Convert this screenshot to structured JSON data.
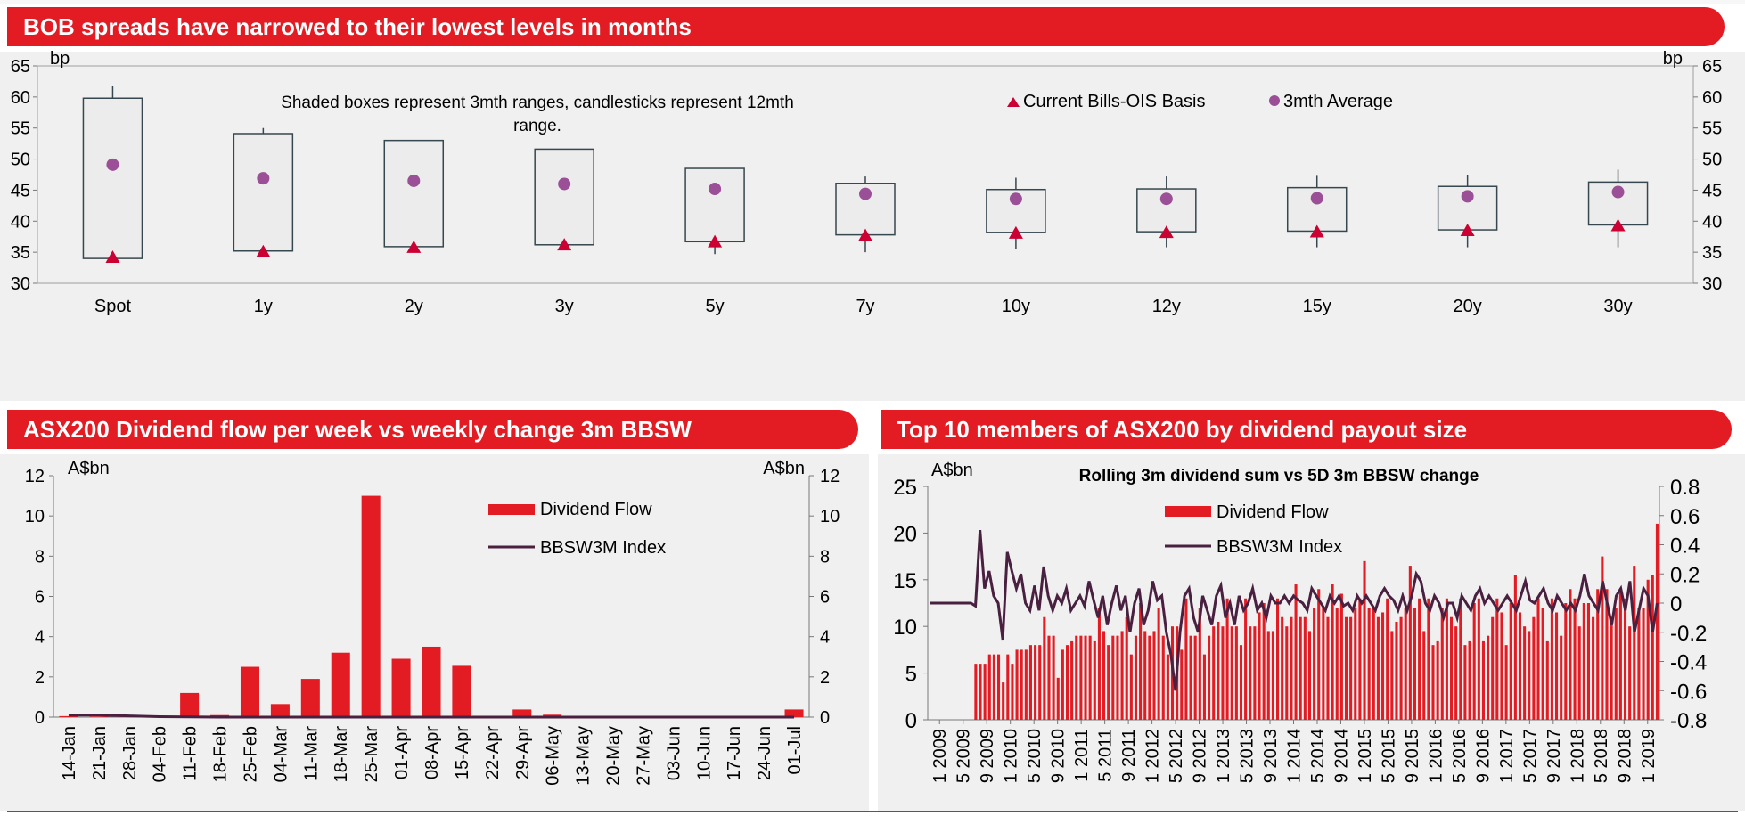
{
  "banners": {
    "top": "BOB spreads have narrowed to their lowest levels in months",
    "left": "ASX200 Dividend flow per week vs weekly change 3m BBSW",
    "right": "Top 10 members of ASX200 by dividend payout size"
  },
  "colors": {
    "accent": "#e31b23",
    "line": "#4a2040",
    "avg": "#9b4f96",
    "box_edge": "#37474f"
  },
  "chart_data": [
    {
      "type": "box",
      "title": "BOB spreads",
      "note": "Shaded boxes represent 3mth ranges, candlesticks represent 12mth range.",
      "ylabel_left": "bp",
      "ylabel_right": "bp",
      "ylim": [
        30,
        65
      ],
      "yticks": [
        30,
        35,
        40,
        45,
        50,
        55,
        60,
        65
      ],
      "categories": [
        "Spot",
        "1y",
        "2y",
        "3y",
        "5y",
        "7y",
        "10y",
        "12y",
        "15y",
        "20y",
        "30y"
      ],
      "box_low": [
        34.0,
        35.2,
        35.9,
        36.2,
        36.7,
        37.8,
        38.2,
        38.3,
        38.4,
        38.6,
        39.4
      ],
      "box_high": [
        59.8,
        54.1,
        53.0,
        51.6,
        48.5,
        46.1,
        45.1,
        45.2,
        45.4,
        45.6,
        46.3
      ],
      "whisker_low": [
        34.0,
        35.2,
        35.9,
        35.4,
        34.7,
        35.0,
        35.5,
        35.8,
        35.8,
        35.8,
        35.8
      ],
      "whisker_high": [
        61.8,
        55.0,
        53.0,
        51.6,
        48.5,
        47.2,
        47.0,
        47.2,
        47.3,
        47.5,
        48.3
      ],
      "series": [
        {
          "name": "Current Bills-OIS Basis",
          "values": [
            34.3,
            35.2,
            35.9,
            36.3,
            36.8,
            37.8,
            38.2,
            38.3,
            38.4,
            38.6,
            39.4
          ]
        },
        {
          "name": "3mth Average",
          "values": [
            49.1,
            46.9,
            46.5,
            46.0,
            45.2,
            44.4,
            43.6,
            43.6,
            43.7,
            44.0,
            44.7
          ]
        }
      ]
    },
    {
      "type": "bar",
      "title": "ASX200 Dividend flow per week vs weekly change 3m BBSW",
      "ylabel_left": "A$bn",
      "ylabel_right": "A$bn",
      "ylim": [
        0,
        12
      ],
      "yticks": [
        0,
        2,
        4,
        6,
        8,
        10,
        12
      ],
      "categories": [
        "14-Jan",
        "21-Jan",
        "28-Jan",
        "04-Feb",
        "11-Feb",
        "18-Feb",
        "25-Feb",
        "04-Mar",
        "11-Mar",
        "18-Mar",
        "25-Mar",
        "01-Apr",
        "08-Apr",
        "15-Apr",
        "22-Apr",
        "29-Apr",
        "06-May",
        "13-May",
        "20-May",
        "27-May",
        "03-Jun",
        "10-Jun",
        "17-Jun",
        "24-Jun",
        "01-Jul"
      ],
      "series": [
        {
          "name": "Dividend Flow",
          "values": [
            0.05,
            0.03,
            0.03,
            0.02,
            1.2,
            0.1,
            2.5,
            0.65,
            1.9,
            3.2,
            11.0,
            2.9,
            3.5,
            2.55,
            0,
            0.38,
            0.12,
            0,
            0.03,
            0,
            0,
            0.05,
            0,
            0,
            0.38
          ]
        },
        {
          "name": "BBSW3M Index",
          "values": [
            0.1,
            0.1,
            0.06,
            0.02,
            0.01,
            0,
            0,
            0,
            0,
            0,
            0,
            0,
            0,
            0,
            0,
            0,
            0,
            0,
            0,
            0,
            0,
            0,
            0,
            0,
            0
          ]
        }
      ]
    },
    {
      "type": "bar",
      "title": "Rolling 3m dividend sum vs 5D 3m BBSW change",
      "ylabel_left": "A$bn",
      "ylim_left": [
        0,
        25
      ],
      "yticks_left": [
        0,
        5,
        10,
        15,
        20,
        25
      ],
      "ylim_right": [
        -0.8,
        0.8
      ],
      "yticks_right": [
        -0.8,
        -0.6,
        -0.4,
        -0.2,
        0,
        0.2,
        0.4,
        0.6,
        0.8
      ],
      "x_labels": [
        "1 2009",
        "5 2009",
        "9 2009",
        "1 2010",
        "5 2010",
        "9 2010",
        "1 2011",
        "5 2011",
        "9 2011",
        "1 2012",
        "5 2012",
        "9 2012",
        "1 2013",
        "5 2013",
        "9 2013",
        "1 2014",
        "5 2014",
        "9 2014",
        "1 2015",
        "5 2015",
        "9 2015",
        "1 2016",
        "5 2016",
        "9 2016",
        "1 2017",
        "5 2017",
        "9 2017",
        "1 2018",
        "5 2018",
        "9 2018",
        "1 2019"
      ],
      "series": [
        {
          "name": "Dividend Flow",
          "values": [
            0,
            0,
            0,
            0,
            0,
            0,
            0,
            0,
            0,
            0,
            6,
            6,
            6,
            7,
            7,
            7,
            4,
            7,
            6,
            7.5,
            7.5,
            7.5,
            8,
            8,
            8,
            11,
            9,
            9,
            4.5,
            7.5,
            8,
            8.5,
            9,
            9,
            9,
            9,
            8.5,
            12,
            9.5,
            8,
            9,
            9,
            9.5,
            11,
            7,
            9,
            12.5,
            9.5,
            9,
            9.5,
            12,
            9,
            7,
            10,
            10,
            7.5,
            13,
            9,
            9,
            12,
            7,
            9,
            10,
            10.5,
            10,
            13,
            10,
            10,
            8,
            13,
            10,
            10,
            11.5,
            12.5,
            9.5,
            9.5,
            13,
            11,
            10,
            11,
            14.5,
            11,
            11,
            9.5,
            12,
            14,
            12,
            11,
            14.5,
            12,
            13.5,
            11,
            11,
            12,
            13,
            17,
            12,
            12,
            11,
            11.5,
            13,
            9.5,
            10.5,
            11,
            12,
            16.5,
            12,
            13,
            9.5,
            13,
            8,
            8.5,
            12,
            13,
            11,
            10,
            13,
            8,
            8.5,
            12.5,
            13,
            8.5,
            9,
            11,
            13,
            11.5,
            8,
            12.5,
            15.5,
            11.5,
            10,
            9.5,
            11,
            13,
            12,
            8.5,
            13,
            11.5,
            9,
            12.5,
            14,
            13,
            10,
            12.5,
            12.5,
            11,
            14,
            17.5,
            14,
            11,
            12,
            14,
            13,
            10,
            16.5,
            12,
            12,
            15,
            15.5,
            21
          ]
        },
        {
          "name": "BBSW3M Index",
          "values": [
            0,
            0,
            0,
            0,
            0,
            0,
            0,
            0,
            0,
            0,
            -0.02,
            0.5,
            0.1,
            0.22,
            0.05,
            0,
            -0.25,
            0.35,
            0.22,
            0.1,
            0.2,
            0,
            -0.05,
            0.12,
            -0.05,
            0.25,
            0.05,
            -0.05,
            0.05,
            0,
            0.1,
            -0.05,
            0,
            0.05,
            -0.02,
            0.15,
            0.02,
            -0.1,
            0.05,
            -0.15,
            0,
            0.12,
            -0.05,
            0.05,
            -0.2,
            0,
            0.1,
            -0.15,
            -0.05,
            0.15,
            0.02,
            0.05,
            -0.2,
            -0.35,
            -0.6,
            -0.2,
            0.05,
            0.1,
            -0.1,
            -0.2,
            0.05,
            -0.05,
            -0.15,
            0.05,
            0.12,
            -0.1,
            0,
            -0.15,
            0.05,
            -0.05,
            0,
            0.1,
            -0.05,
            0,
            -0.1,
            0.05,
            0,
            0,
            0.05,
            0,
            0.05,
            0.02,
            0,
            -0.05,
            0.1,
            0.05,
            0,
            -0.05,
            0.05,
            0,
            0.05,
            -0.02,
            0,
            -0.05,
            0.05,
            0,
            0.05,
            0,
            -0.05,
            0.05,
            0.1,
            0.05,
            0.02,
            -0.05,
            0.05,
            -0.05,
            0.05,
            0.2,
            0.15,
            0,
            -0.05,
            0.05,
            0,
            -0.1,
            0,
            0,
            -0.1,
            0.05,
            0,
            -0.05,
            0.05,
            0.1,
            0,
            0.05,
            0,
            -0.05,
            0,
            0.05,
            0,
            -0.05,
            0.05,
            0.15,
            0.02,
            0,
            0.05,
            0.1,
            0,
            -0.05,
            0.05,
            0,
            -0.05,
            0,
            -0.05,
            0.05,
            0.2,
            0.05,
            0,
            -0.05,
            0.15,
            0,
            -0.15,
            0.05,
            0.1,
            -0.05,
            0.15,
            -0.2,
            -0.05,
            0.1,
            0.05,
            -0.2,
            0
          ]
        }
      ]
    }
  ]
}
